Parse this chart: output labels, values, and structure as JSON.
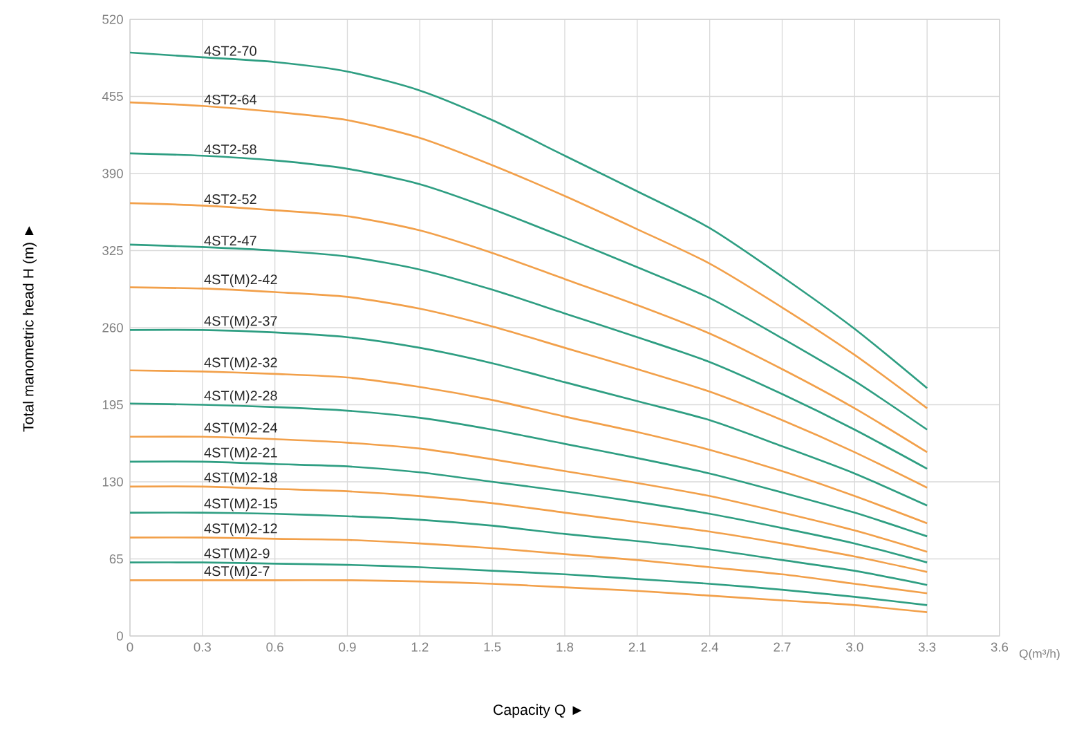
{
  "chart_data": {
    "type": "line",
    "xlabel": "Capacity  Q ►",
    "ylabel": "Total manometric head H (m)  ►",
    "annotations": [
      "Q(m³/h)"
    ],
    "x": [
      0,
      0.3,
      0.6,
      0.9,
      1.2,
      1.5,
      1.8,
      2.1,
      2.4,
      2.7,
      3.0,
      3.3
    ],
    "xlim": [
      0,
      3.6
    ],
    "xticks": [
      0,
      0.3,
      0.6,
      0.9,
      1.2,
      1.5,
      1.8,
      2.1,
      2.4,
      2.7,
      {
        "value": 3,
        "label": "3.0"
      },
      3.3,
      3.6
    ],
    "ylim": [
      0,
      520
    ],
    "yticks": [
      0,
      65,
      130,
      195,
      260,
      325,
      390,
      455,
      520
    ],
    "grid": true,
    "series": [
      {
        "name": "4ST2-70",
        "color": "#2e9e82",
        "values": [
          492,
          488,
          484,
          476,
          460,
          435,
          405,
          375,
          344,
          303,
          259,
          209
        ]
      },
      {
        "name": "4ST2-64",
        "color": "#f2a04a",
        "values": [
          450,
          447,
          442,
          435,
          420,
          397,
          371,
          343,
          314,
          277,
          237,
          192
        ]
      },
      {
        "name": "4ST2-58",
        "color": "#2e9e82",
        "values": [
          407,
          405,
          401,
          394,
          381,
          360,
          336,
          311,
          285,
          251,
          215,
          174
        ]
      },
      {
        "name": "4ST2-52",
        "color": "#f2a04a",
        "values": [
          365,
          363,
          359,
          354,
          342,
          323,
          301,
          279,
          255,
          225,
          192,
          155
        ]
      },
      {
        "name": "4ST2-47",
        "color": "#2e9e82",
        "values": [
          330,
          328,
          325,
          320,
          309,
          292,
          272,
          252,
          231,
          204,
          174,
          141
        ]
      },
      {
        "name": "4ST(M)2-42",
        "color": "#f2a04a",
        "values": [
          294,
          293,
          290,
          286,
          276,
          261,
          243,
          225,
          206,
          182,
          155,
          125
        ]
      },
      {
        "name": "4ST(M)2-37",
        "color": "#2e9e82",
        "values": [
          258,
          258,
          256,
          252,
          243,
          230,
          214,
          198,
          182,
          160,
          137,
          110
        ]
      },
      {
        "name": "4ST(M)2-32",
        "color": "#f2a04a",
        "values": [
          224,
          223,
          221,
          218,
          210,
          199,
          185,
          172,
          157,
          139,
          118,
          95
        ]
      },
      {
        "name": "4ST(M)2-28",
        "color": "#2e9e82",
        "values": [
          196,
          195,
          193,
          190,
          184,
          174,
          162,
          150,
          137,
          121,
          104,
          84
        ]
      },
      {
        "name": "4ST(M)2-24",
        "color": "#f2a04a",
        "values": [
          168,
          168,
          166,
          163,
          158,
          149,
          139,
          129,
          118,
          104,
          89,
          71
        ]
      },
      {
        "name": "4ST(M)2-21",
        "color": "#2e9e82",
        "values": [
          147,
          147,
          145,
          143,
          138,
          130,
          122,
          113,
          103,
          91,
          78,
          62
        ]
      },
      {
        "name": "4ST(M)2-18",
        "color": "#f2a04a",
        "values": [
          126,
          126,
          124,
          122,
          118,
          112,
          104,
          96,
          88,
          78,
          67,
          54
        ]
      },
      {
        "name": "4ST(M)2-15",
        "color": "#2e9e82",
        "values": [
          104,
          104,
          103,
          101,
          98,
          93,
          86,
          80,
          73,
          64,
          55,
          43
        ]
      },
      {
        "name": "4ST(M)2-12",
        "color": "#f2a04a",
        "values": [
          83,
          83,
          82,
          81,
          78,
          74,
          69,
          64,
          58,
          52,
          44,
          36
        ]
      },
      {
        "name": "4ST(M)2-9",
        "color": "#2e9e82",
        "values": [
          62,
          62,
          61,
          60,
          58,
          55,
          52,
          48,
          44,
          39,
          33,
          26
        ]
      },
      {
        "name": "4ST(M)2-7",
        "color": "#f2a04a",
        "values": [
          47,
          47,
          47,
          47,
          46,
          44,
          41,
          38,
          34,
          30,
          26,
          20
        ]
      }
    ]
  }
}
